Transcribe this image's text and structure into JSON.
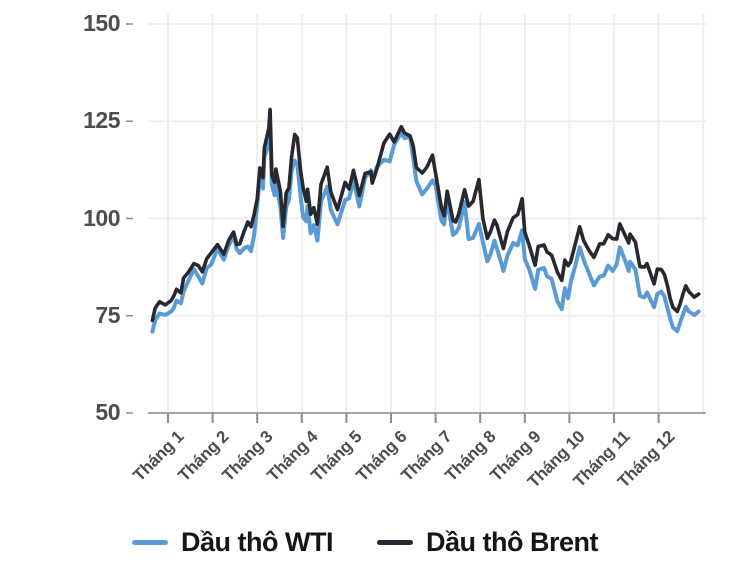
{
  "chart_data": {
    "type": "line",
    "title": "",
    "xlabel": "",
    "ylabel": "",
    "ylim": [
      50,
      150
    ],
    "grid": true,
    "legend_position": "bottom",
    "ytick_labels": [
      "150",
      "125",
      "100",
      "75",
      "50"
    ],
    "ytick_values": [
      150,
      125,
      100,
      75,
      50
    ],
    "months": [
      "Tháng 1",
      "Tháng 2",
      "Tháng 3",
      "Tháng 4",
      "Tháng 5",
      "Tháng 6",
      "Tháng 7",
      "Tháng 8",
      "Tháng 9",
      "Tháng 10",
      "Tháng 11",
      "Tháng 12"
    ],
    "x_months": [
      -0.35,
      -0.29,
      -0.19,
      -0.06,
      0.07,
      0.13,
      0.19,
      0.29,
      0.35,
      0.45,
      0.58,
      0.68,
      0.77,
      0.87,
      0.97,
      1.11,
      1.25,
      1.36,
      1.47,
      1.54,
      1.61,
      1.71,
      1.79,
      1.86,
      1.93,
      2.0,
      2.06,
      2.13,
      2.16,
      2.26,
      2.29,
      2.33,
      2.39,
      2.42,
      2.52,
      2.58,
      2.65,
      2.71,
      2.77,
      2.84,
      2.9,
      2.97,
      3.03,
      3.1,
      3.13,
      3.2,
      3.27,
      3.35,
      3.43,
      3.57,
      3.65,
      3.8,
      3.97,
      4.06,
      4.16,
      4.29,
      4.42,
      4.55,
      4.58,
      4.68,
      4.84,
      4.97,
      5.07,
      5.23,
      5.3,
      5.43,
      5.5,
      5.57,
      5.7,
      5.8,
      5.93,
      6.0,
      6.13,
      6.19,
      6.26,
      6.39,
      6.45,
      6.52,
      6.65,
      6.74,
      6.84,
      6.97,
      7.06,
      7.16,
      7.23,
      7.32,
      7.38,
      7.45,
      7.52,
      7.61,
      7.74,
      7.84,
      7.94,
      8.0,
      8.1,
      8.23,
      8.3,
      8.43,
      8.5,
      8.6,
      8.73,
      8.83,
      8.9,
      8.97,
      9.03,
      9.13,
      9.23,
      9.32,
      9.45,
      9.55,
      9.68,
      9.77,
      9.87,
      9.97,
      10.06,
      10.13,
      10.26,
      10.33,
      10.36,
      10.48,
      10.58,
      10.68,
      10.74,
      10.9,
      10.97,
      11.06,
      11.13,
      11.2,
      11.26,
      11.32,
      11.42,
      11.48,
      11.55,
      11.61,
      11.68,
      11.8,
      11.9
    ],
    "series": [
      {
        "name": "Dầu thô WTI",
        "color": "#5b9bd5",
        "values": [
          70.9,
          73.8,
          75.6,
          75.2,
          76.1,
          77.0,
          78.9,
          78.2,
          81.2,
          83.8,
          87.0,
          85.1,
          83.3,
          87.3,
          88.2,
          92.3,
          89.4,
          93.1,
          95.5,
          92.1,
          91.1,
          92.4,
          92.8,
          91.6,
          95.7,
          103.4,
          110.6,
          107.7,
          115.7,
          119.4,
          123.7,
          108.7,
          106.0,
          109.3,
          103.0,
          95.0,
          103.0,
          104.7,
          112.1,
          114.9,
          113.9,
          106.0,
          100.3,
          99.3,
          103.3,
          96.2,
          98.3,
          94.3,
          104.3,
          108.2,
          102.2,
          98.5,
          104.7,
          105.2,
          109.8,
          103.1,
          110.5,
          112.4,
          109.6,
          113.2,
          115.1,
          114.7,
          118.9,
          122.1,
          120.7,
          120.9,
          115.3,
          109.6,
          106.2,
          107.6,
          109.8,
          108.4,
          99.5,
          98.5,
          104.8,
          95.8,
          96.3,
          97.6,
          104.2,
          94.7,
          95.0,
          98.6,
          93.9,
          89.0,
          90.8,
          94.3,
          92.1,
          89.4,
          86.5,
          90.5,
          93.7,
          93.1,
          97.0,
          89.6,
          86.9,
          81.9,
          86.8,
          87.3,
          85.1,
          84.5,
          78.7,
          76.7,
          82.1,
          79.5,
          83.6,
          87.8,
          92.6,
          89.3,
          85.6,
          82.8,
          85.1,
          85.3,
          87.9,
          86.5,
          88.2,
          92.6,
          88.9,
          86.5,
          88.9,
          86.9,
          80.1,
          79.7,
          81.0,
          77.2,
          80.6,
          81.2,
          80.0,
          76.9,
          74.3,
          72.0,
          71.0,
          73.2,
          75.4,
          77.3,
          76.1,
          75.2,
          76.1
        ]
      },
      {
        "name": "Dầu thô Brent",
        "color": "#282830",
        "values": [
          73.8,
          76.9,
          78.6,
          77.8,
          78.9,
          80.1,
          81.8,
          80.9,
          84.7,
          86.1,
          88.4,
          87.9,
          86.3,
          89.7,
          91.2,
          93.3,
          90.8,
          94.4,
          96.5,
          93.3,
          93.5,
          96.8,
          99.1,
          97.9,
          101.0,
          105.0,
          113.0,
          110.5,
          118.1,
          123.2,
          128.0,
          111.1,
          109.3,
          112.7,
          106.9,
          98.0,
          106.6,
          107.9,
          115.6,
          121.6,
          120.7,
          112.5,
          107.9,
          104.4,
          107.5,
          101.1,
          102.8,
          98.5,
          108.8,
          113.2,
          106.8,
          102.3,
          109.3,
          107.6,
          112.4,
          105.9,
          111.6,
          112.0,
          109.1,
          112.6,
          119.4,
          121.7,
          119.7,
          123.6,
          122.0,
          121.2,
          118.5,
          113.1,
          111.7,
          113.1,
          116.3,
          111.6,
          102.8,
          100.7,
          107.0,
          99.5,
          99.1,
          101.2,
          107.4,
          103.2,
          104.4,
          110.0,
          100.0,
          94.9,
          96.6,
          99.6,
          98.2,
          95.1,
          92.3,
          96.6,
          100.2,
          101.0,
          105.1,
          96.5,
          93.0,
          88.0,
          92.8,
          93.2,
          91.4,
          90.6,
          86.2,
          84.1,
          89.3,
          87.9,
          88.9,
          93.4,
          97.9,
          94.3,
          91.6,
          90.0,
          93.5,
          93.5,
          95.8,
          94.8,
          94.7,
          98.6,
          95.4,
          93.7,
          96.0,
          93.9,
          87.6,
          87.5,
          88.4,
          83.2,
          87.0,
          86.9,
          85.6,
          82.7,
          79.4,
          77.2,
          76.1,
          78.0,
          80.7,
          82.7,
          81.2,
          79.8,
          80.6
        ]
      }
    ]
  },
  "colors": {
    "background": "#ffffff",
    "grid": "#ededed",
    "axis": "#a6a6a6",
    "tick": "#8c8c8c",
    "label": "#4d4d4d",
    "legend_text": "#161616"
  }
}
